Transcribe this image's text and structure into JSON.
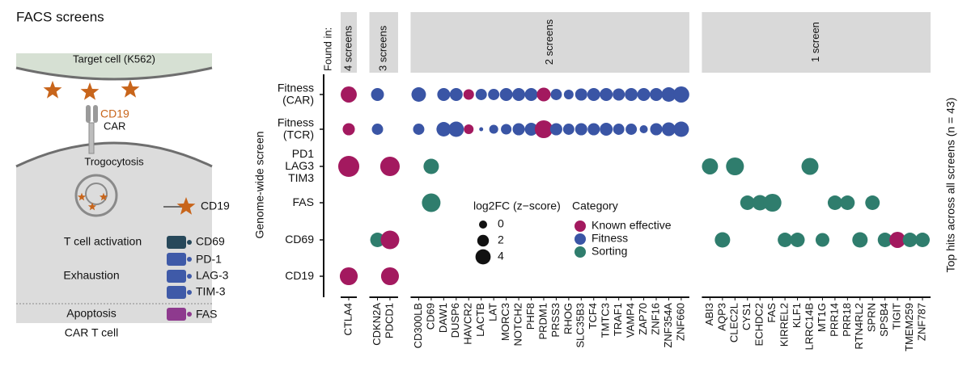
{
  "panel_title": "FACS screens",
  "diagram": {
    "target_cell": "Target cell (K562)",
    "car_antigen": "CD19",
    "car": "CAR",
    "trogocytosis": "Trogocytosis",
    "trogocytosed_marker": "CD19",
    "activation": "T cell activation",
    "activation_marker": "CD69",
    "exhaustion": "Exhaustion",
    "exhaustion_markers": [
      "PD-1",
      "LAG-3",
      "TIM-3"
    ],
    "apoptosis": "Apoptosis",
    "apoptosis_marker": "FAS",
    "t_cell": "CAR T cell"
  },
  "chart_data": {
    "type": "dot",
    "y_label": "Genome-wide screen",
    "right_label": "Top hits across all screens (n = 43)",
    "group_title": "Found in:",
    "column_groups": [
      {
        "label": "4 screens",
        "columns": [
          "CTLA4"
        ]
      },
      {
        "label": "3 screens",
        "columns": [
          "CDKN2A",
          "PDCD1"
        ]
      },
      {
        "label": "2 screens",
        "columns": [
          "CD300LB",
          "CD69",
          "DAW1",
          "DUSP6",
          "HAVCR2",
          "LACTB",
          "LAT",
          "MORC3",
          "NOTCH2",
          "PHF8",
          "PRDM1",
          "PRSS3",
          "RHOG",
          "SLC35B3",
          "TCF4",
          "TMTC3",
          "TRAF1",
          "VAMP4",
          "ZAP70",
          "ZNF16",
          "ZNF354A",
          "ZNF660"
        ]
      },
      {
        "label": "1 screen",
        "columns": [
          "ABI3",
          "AQP3",
          "CLEC2L",
          "CYS1",
          "ECHDC2",
          "FAS",
          "KIRREL2",
          "KLF1",
          "LRRC14B",
          "MT1G",
          "PRR14",
          "PRR18",
          "RTN4RL2",
          "SPRN",
          "SPSB4",
          "TIGIT",
          "TMEM259",
          "ZNF787"
        ]
      }
    ],
    "rows": [
      {
        "label": [
          "Fitness",
          "(CAR)"
        ],
        "values": [
          4.5,
          2.7,
          null,
          3.6,
          null,
          2.7,
          2.7,
          1.4,
          1.8,
          1.8,
          2.7,
          2.7,
          2.7,
          3.2,
          1.8,
          0.9,
          2.3,
          2.7,
          2.7,
          2.3,
          2.7,
          2.7,
          2.7,
          3.6,
          4.5,
          null,
          null,
          null,
          null,
          null,
          null,
          null,
          null,
          null,
          null,
          null,
          null,
          null,
          null,
          null,
          null,
          null,
          null
        ],
        "category": [
          "Known effective",
          "Fitness",
          null,
          "Fitness",
          null,
          "Fitness",
          "Fitness",
          "Known effective",
          "Fitness",
          "Fitness",
          "Fitness",
          "Fitness",
          "Fitness",
          "Known effective",
          "Fitness",
          "Fitness",
          "Fitness",
          "Fitness",
          "Fitness",
          "Fitness",
          "Fitness",
          "Fitness",
          "Fitness",
          "Fitness",
          "Fitness",
          null,
          null,
          null,
          null,
          null,
          null,
          null,
          null,
          null,
          null,
          null,
          null,
          null,
          null,
          null,
          null,
          null,
          null
        ]
      },
      {
        "label": [
          "Fitness",
          "(TCR)"
        ],
        "values": [
          2.3,
          1.8,
          null,
          1.8,
          null,
          3.6,
          4.1,
          0.9,
          -2.3,
          0.5,
          1.4,
          2.3,
          2.7,
          5.5,
          2.3,
          1.8,
          2.3,
          2.3,
          2.7,
          1.8,
          1.8,
          0,
          2.3,
          3.2,
          4.1,
          null,
          null,
          null,
          null,
          null,
          null,
          null,
          null,
          null,
          null,
          null,
          null,
          null,
          null,
          null,
          null,
          null,
          null
        ],
        "category": [
          "Known effective",
          "Fitness",
          null,
          "Fitness",
          null,
          "Fitness",
          "Fitness",
          "Known effective",
          "Fitness",
          "Fitness",
          "Fitness",
          "Fitness",
          "Fitness",
          "Known effective",
          "Fitness",
          "Fitness",
          "Fitness",
          "Fitness",
          "Fitness",
          "Fitness",
          "Fitness",
          "Fitness",
          "Fitness",
          "Fitness",
          "Fitness",
          null,
          null,
          null,
          null,
          null,
          null,
          null,
          null,
          null,
          null,
          null,
          null,
          null,
          null,
          null,
          null,
          null,
          null
        ]
      },
      {
        "label": [
          "PD1",
          "LAG3",
          "TIM3"
        ],
        "values": [
          7.3,
          null,
          6.4,
          null,
          4.1,
          null,
          null,
          null,
          null,
          null,
          null,
          null,
          null,
          null,
          null,
          null,
          null,
          null,
          null,
          null,
          null,
          null,
          null,
          null,
          null,
          4.5,
          null,
          5.5,
          null,
          null,
          null,
          null,
          null,
          5,
          null,
          null,
          null,
          null,
          null,
          null,
          null,
          null,
          null
        ],
        "category": [
          "Known effective",
          null,
          "Known effective",
          null,
          "Sorting",
          null,
          null,
          null,
          null,
          null,
          null,
          null,
          null,
          null,
          null,
          null,
          null,
          null,
          null,
          null,
          null,
          null,
          null,
          null,
          null,
          "Sorting",
          null,
          "Sorting",
          null,
          null,
          null,
          null,
          null,
          "Sorting",
          null,
          null,
          null,
          null,
          null,
          null,
          null,
          null,
          null
        ]
      },
      {
        "label": [
          "FAS"
        ],
        "values": [
          null,
          null,
          null,
          null,
          5.9,
          null,
          null,
          null,
          null,
          null,
          null,
          null,
          null,
          null,
          null,
          null,
          null,
          null,
          null,
          null,
          null,
          null,
          null,
          null,
          null,
          null,
          null,
          null,
          3.6,
          4.1,
          5.5,
          null,
          null,
          null,
          null,
          3.6,
          3.6,
          null,
          3.6,
          null,
          null,
          null,
          null
        ],
        "category": [
          null,
          null,
          null,
          null,
          "Sorting",
          null,
          null,
          null,
          null,
          null,
          null,
          null,
          null,
          null,
          null,
          null,
          null,
          null,
          null,
          null,
          null,
          null,
          null,
          null,
          null,
          null,
          null,
          null,
          "Sorting",
          "Sorting",
          "Sorting",
          null,
          null,
          null,
          null,
          "Sorting",
          "Sorting",
          null,
          "Sorting",
          null,
          null,
          null,
          null
        ]
      },
      {
        "label": [
          "CD69"
        ],
        "values": [
          null,
          3.6,
          5.9,
          null,
          null,
          null,
          null,
          null,
          null,
          null,
          null,
          null,
          null,
          null,
          null,
          null,
          null,
          null,
          null,
          null,
          null,
          null,
          null,
          null,
          null,
          null,
          4.1,
          null,
          null,
          null,
          null,
          3.6,
          3.6,
          null,
          3.2,
          null,
          null,
          4.1,
          null,
          3.6,
          4.5,
          3.6,
          3.6
        ],
        "category": [
          null,
          "Sorting",
          "Known effective",
          null,
          null,
          null,
          null,
          null,
          null,
          null,
          null,
          null,
          null,
          null,
          null,
          null,
          null,
          null,
          null,
          null,
          null,
          null,
          null,
          null,
          null,
          null,
          "Sorting",
          null,
          null,
          null,
          null,
          "Sorting",
          "Sorting",
          null,
          "Sorting",
          null,
          null,
          "Sorting",
          null,
          "Sorting",
          "Known effective",
          "Sorting",
          "Sorting"
        ]
      },
      {
        "label": [
          "CD19"
        ],
        "values": [
          5.5,
          null,
          5.5,
          null,
          null,
          null,
          null,
          null,
          null,
          null,
          null,
          null,
          null,
          null,
          null,
          null,
          null,
          null,
          null,
          null,
          null,
          null,
          null,
          null,
          null,
          null,
          null,
          null,
          null,
          null,
          null,
          null,
          null,
          null,
          null,
          null,
          null,
          null,
          null,
          null,
          null,
          null,
          null
        ],
        "category": [
          "Known effective",
          null,
          "Known effective",
          null,
          null,
          null,
          null,
          null,
          null,
          null,
          null,
          null,
          null,
          null,
          null,
          null,
          null,
          null,
          null,
          null,
          null,
          null,
          null,
          null,
          null,
          null,
          null,
          null,
          null,
          null,
          null,
          null,
          null,
          null,
          null,
          null,
          null,
          null,
          null,
          null,
          null,
          null,
          null
        ]
      }
    ],
    "size_legend": {
      "title": "log2FC (z−score)",
      "values": [
        0,
        2,
        4
      ]
    },
    "color_legend": {
      "title": "Category",
      "items": [
        {
          "name": "Known effective",
          "color": "#a3195f"
        },
        {
          "name": "Fitness",
          "color": "#3a55a5"
        },
        {
          "name": "Sorting",
          "color": "#2f7d6d"
        }
      ]
    }
  }
}
